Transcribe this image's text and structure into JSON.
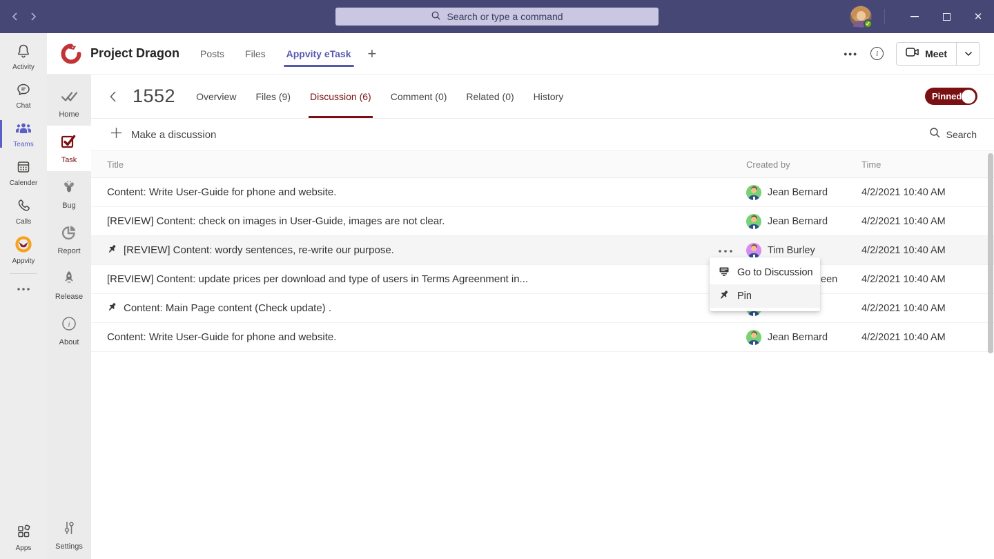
{
  "titlebar": {
    "search_placeholder": "Search or type a command"
  },
  "app_rail": {
    "items": [
      {
        "id": "activity",
        "label": "Activity",
        "icon": "bell-icon",
        "active": false
      },
      {
        "id": "chat",
        "label": "Chat",
        "icon": "chat-icon",
        "active": false
      },
      {
        "id": "teams",
        "label": "Teams",
        "icon": "teams-icon",
        "active": true
      },
      {
        "id": "calendar",
        "label": "Calender",
        "icon": "calendar-icon",
        "active": false
      },
      {
        "id": "calls",
        "label": "Calls",
        "icon": "phone-icon",
        "active": false
      },
      {
        "id": "appvity",
        "label": "Appvity",
        "icon": "appvity-logo-icon",
        "active": false
      }
    ],
    "apps_label": "Apps"
  },
  "team_header": {
    "team_name": "Project Dragon",
    "tabs": [
      {
        "label": "Posts",
        "active": false
      },
      {
        "label": "Files",
        "active": false
      },
      {
        "label": "Appvity eTask",
        "active": true
      }
    ],
    "meet_label": "Meet"
  },
  "module_sidebar": {
    "items": [
      {
        "id": "home",
        "label": "Home",
        "icon": "home-icon",
        "active": false
      },
      {
        "id": "task",
        "label": "Task",
        "icon": "task-icon",
        "active": true
      },
      {
        "id": "bug",
        "label": "Bug",
        "icon": "bug-icon",
        "active": false
      },
      {
        "id": "report",
        "label": "Report",
        "icon": "report-icon",
        "active": false
      },
      {
        "id": "release",
        "label": "Release",
        "icon": "release-icon",
        "active": false
      },
      {
        "id": "about",
        "label": "About",
        "icon": "about-icon",
        "active": false
      }
    ],
    "settings_label": "Settings"
  },
  "task_view": {
    "task_id": "1552",
    "tabs": [
      {
        "label": "Overview",
        "active": false
      },
      {
        "label": "Files (9)",
        "active": false
      },
      {
        "label": "Discussion (6)",
        "active": true
      },
      {
        "label": "Comment (0)",
        "active": false
      },
      {
        "label": "Related (0)",
        "active": false
      },
      {
        "label": "History",
        "active": false
      }
    ],
    "pinned_label": "Pinned",
    "pinned_on": true,
    "make_discussion_label": "Make a discussion",
    "search_label": "Search",
    "columns": {
      "title": "Title",
      "created_by": "Created by",
      "time": "Time"
    },
    "rows": [
      {
        "title": "Content: Write User-Guide for phone and website.",
        "pinned": false,
        "creator": "Jean Bernard",
        "avatar": "green",
        "time": "4/2/2021 10:40 AM",
        "hovered": false,
        "show_more": false,
        "fragment": false
      },
      {
        "title": "[REVIEW] Content: check on images in User-Guide, images are not clear.",
        "pinned": false,
        "creator": "Jean Bernard",
        "avatar": "green",
        "time": "4/2/2021 10:40 AM",
        "hovered": false,
        "show_more": false,
        "fragment": false
      },
      {
        "title": "[REVIEW] Content: wordy sentences, re-write our purpose.",
        "pinned": true,
        "creator": "Tim Burley",
        "avatar": "purple",
        "time": "4/2/2021 10:40 AM",
        "hovered": true,
        "show_more": true,
        "fragment": false
      },
      {
        "title": "[REVIEW] Content: update prices per download and type of users in Terms Agreenment in...",
        "pinned": false,
        "creator": "een",
        "avatar": null,
        "time": "4/2/2021 10:40 AM",
        "hovered": false,
        "show_more": false,
        "fragment": true
      },
      {
        "title": "Content: Main Page content (Check update) .",
        "pinned": true,
        "creator": "d",
        "avatar": "green",
        "time": "4/2/2021 10:40 AM",
        "hovered": false,
        "show_more": false,
        "fragment": true
      },
      {
        "title": "Content: Write User-Guide for phone and website.",
        "pinned": false,
        "creator": "Jean Bernard",
        "avatar": "green",
        "time": "4/2/2021 10:40 AM",
        "hovered": false,
        "show_more": false,
        "fragment": false
      }
    ],
    "context_menu": {
      "items": [
        {
          "label": "Go to Discussion",
          "icon": "discussion-icon",
          "highlighted": false
        },
        {
          "label": "Pin",
          "icon": "pin-icon",
          "highlighted": true
        }
      ]
    }
  },
  "colors": {
    "titlebar_bg": "#464775",
    "accent_maroon": "#7a1011",
    "accent_purple": "#5558af",
    "teams_purple": "#5b5fc7",
    "avatar_green": "#76d275",
    "avatar_purple": "#d58bf2"
  }
}
